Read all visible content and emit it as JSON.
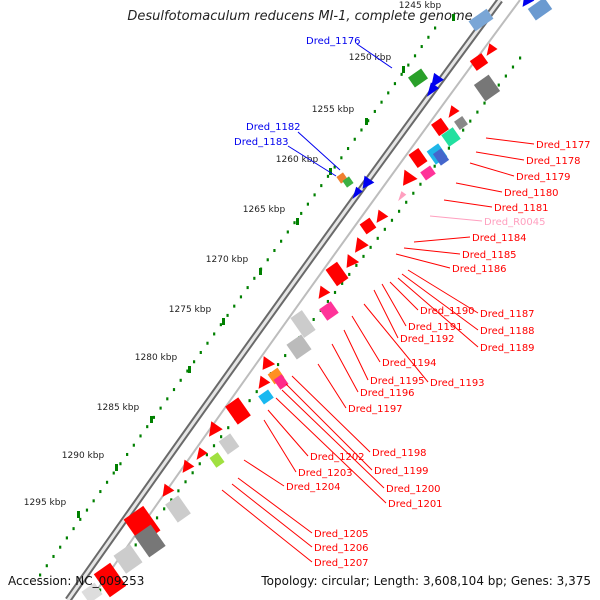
{
  "title": "Desulfotomaculum reducens MI-1, complete genome",
  "accession": "Accession: NC_009253",
  "topology": "Topology: circular; Length: 3,608,104 bp; Genes: 3,375",
  "colors": {
    "forward_gene": "#0000ee",
    "reverse_gene": "#ff0000",
    "rna_gene": "#ff9fbf",
    "gc_tick": "#008000",
    "backbone": "#666666"
  },
  "kbp_ticks": [
    "1245 kbp",
    "1250 kbp",
    "1255 kbp",
    "1260 kbp",
    "1265 kbp",
    "1270 kbp",
    "1275 kbp",
    "1280 kbp",
    "1285 kbp",
    "1290 kbp",
    "1295 kbp"
  ],
  "forward_labels": [
    "Dred_1176",
    "Dred_1182",
    "Dred_1183"
  ],
  "reverse_labels": [
    "Dred_1177",
    "Dred_1178",
    "Dred_1179",
    "Dred_1180",
    "Dred_1181",
    "Dred_R0045",
    "Dred_1184",
    "Dred_1185",
    "Dred_1186",
    "Dred_1187",
    "Dred_1188",
    "Dred_1189",
    "Dred_1190",
    "Dred_1191",
    "Dred_1192",
    "Dred_1193",
    "Dred_1194",
    "Dred_1195",
    "Dred_1196",
    "Dred_1197",
    "Dred_1198",
    "Dred_1199",
    "Dred_1200",
    "Dred_1201",
    "Dred_1202",
    "Dred_1203",
    "Dred_1204",
    "Dred_1205",
    "Dred_1206",
    "Dred_1207"
  ]
}
